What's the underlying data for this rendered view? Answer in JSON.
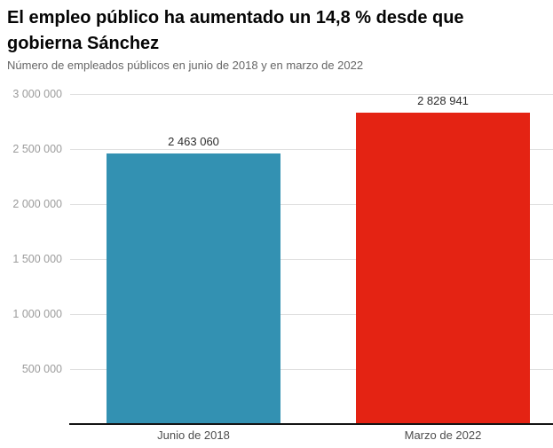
{
  "header": {
    "title": "El empleo público ha aumentado un 14,8 % desde que gobierna Sánchez",
    "subtitle": "Número de empleados públicos en junio de 2018 y en marzo de 2022"
  },
  "colors": {
    "bar_june_2018": "#3391b2",
    "bar_march_2022": "#e42313",
    "gridline": "#e0e0e0",
    "axis_baseline": "#141414",
    "tick_label": "#9b9b9b"
  },
  "chart_data": {
    "type": "bar",
    "title": "El empleo público ha aumentado un 14,8 % desde que gobierna Sánchez",
    "subtitle": "Número de empleados públicos en junio de 2018 y en marzo de 2022",
    "categories": [
      "Junio de 2018",
      "Marzo de 2022"
    ],
    "values": [
      2463060,
      2828941
    ],
    "value_labels": [
      "2 463 060",
      "2 828 941"
    ],
    "bar_colors": [
      "#3391b2",
      "#e42313"
    ],
    "xlabel": "",
    "ylabel": "",
    "ylim": [
      0,
      3000000
    ],
    "grid": true,
    "legend": "none",
    "yticks": [
      {
        "value": 500000,
        "label": "500 000"
      },
      {
        "value": 1000000,
        "label": "1 000 000"
      },
      {
        "value": 1500000,
        "label": "1 500 000"
      },
      {
        "value": 2000000,
        "label": "2 000 000"
      },
      {
        "value": 2500000,
        "label": "2 500 000"
      },
      {
        "value": 3000000,
        "label": "3 000 000"
      }
    ]
  }
}
